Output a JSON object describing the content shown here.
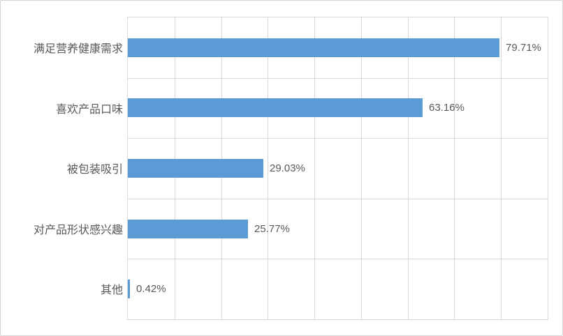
{
  "chart_data": {
    "type": "bar",
    "orientation": "horizontal",
    "title": "",
    "xlabel": "",
    "ylabel": "",
    "categories": [
      "满足营养健康需求",
      "喜欢产品口味",
      "被包装吸引",
      "对产品形状感兴趣",
      "其他"
    ],
    "values": [
      79.71,
      63.16,
      29.03,
      25.77,
      0.42
    ],
    "data_labels": [
      "79.71%",
      "63.16%",
      "29.03%",
      "25.77%",
      "0.42%"
    ],
    "xlim": [
      0,
      90
    ],
    "gridline_step": 10,
    "grid": true,
    "legend": "none",
    "axis_tick_labels_visible": false,
    "colors": {
      "bar": "#5B9BD5",
      "gridline": "#d9d9d9",
      "text": "#595959",
      "plot_border": "#d9d9d9",
      "frame_border": "#d5d5d5",
      "background": "#ffffff"
    }
  }
}
